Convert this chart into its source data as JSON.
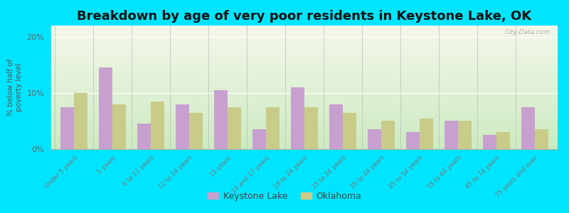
{
  "title": "Breakdown by age of very poor residents in Keystone Lake, OK",
  "ylabel": "% below half of\npoverty level",
  "categories": [
    "Under 5 years",
    "5 years",
    "6 to 11 years",
    "12 to 14 years",
    "15 years",
    "16 and 17 years",
    "18 to 24 years",
    "25 to 34 years",
    "35 to 44 years",
    "45 to 54 years",
    "55 to 64 years",
    "65 to 74 years",
    "75 years and over"
  ],
  "keystone_lake": [
    7.5,
    14.5,
    4.5,
    8.0,
    10.5,
    3.5,
    11.0,
    8.0,
    3.5,
    3.0,
    5.0,
    2.5,
    7.5
  ],
  "oklahoma": [
    10.0,
    8.0,
    8.5,
    6.5,
    7.5,
    7.5,
    7.5,
    6.5,
    5.0,
    5.5,
    5.0,
    3.0,
    3.5
  ],
  "color_keystone": "#c8a0d0",
  "color_oklahoma": "#c8cc88",
  "background_outer": "#00e5ff",
  "background_plot_top": "#f5f5ea",
  "background_plot_bottom": "#cce8c0",
  "ylim": [
    0,
    22
  ],
  "yticks": [
    0,
    10,
    20
  ],
  "ytick_labels": [
    "0%",
    "10%",
    "20%"
  ],
  "legend_keystone": "Keystone Lake",
  "legend_oklahoma": "Oklahoma",
  "title_fontsize": 13,
  "bar_width": 0.35
}
